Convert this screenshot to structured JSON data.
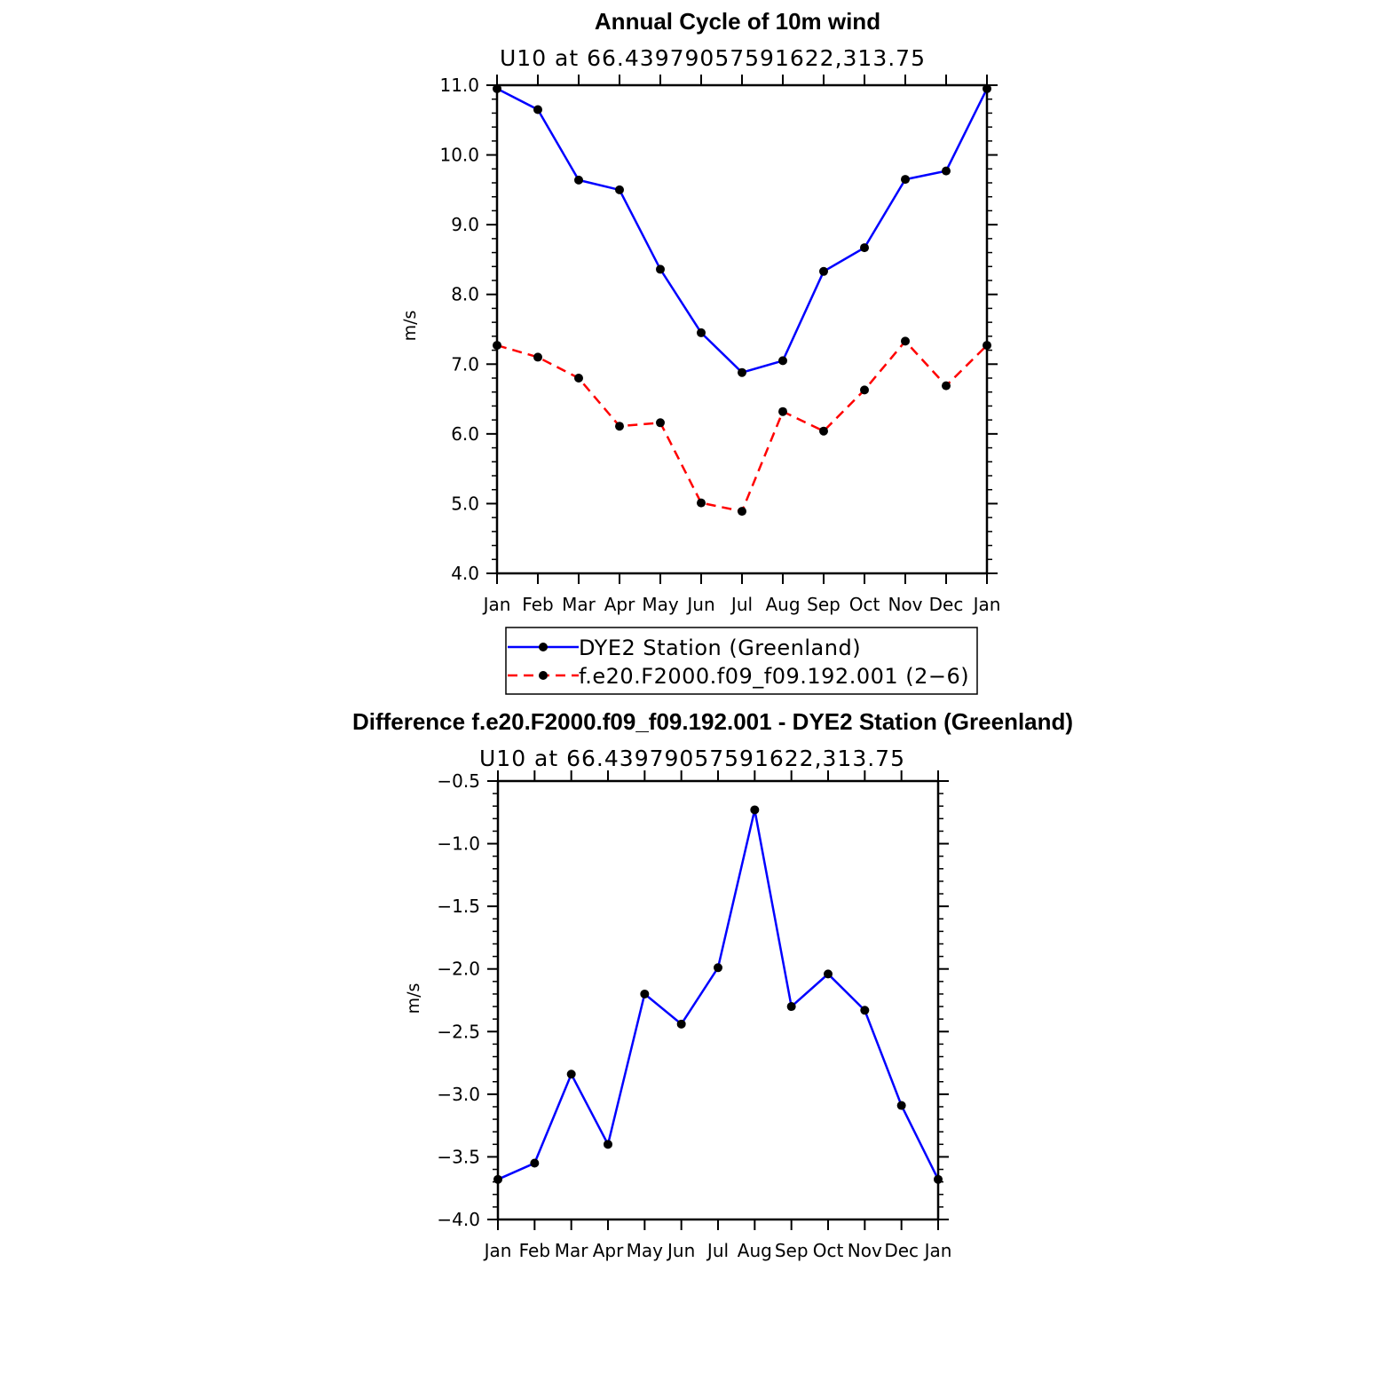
{
  "chart_data": [
    {
      "type": "line",
      "title": "Annual Cycle of 10m wind",
      "subtitle": "U10  at  66.43979057591622,313.75",
      "xlabel": "",
      "ylabel": "m/s",
      "categories": [
        "Jan",
        "Feb",
        "Mar",
        "Apr",
        "May",
        "Jun",
        "Jul",
        "Aug",
        "Sep",
        "Oct",
        "Nov",
        "Dec",
        "Jan"
      ],
      "ylim": [
        4.0,
        11.0
      ],
      "yticks": [
        "4.0",
        "5.0",
        "6.0",
        "7.0",
        "8.0",
        "9.0",
        "10.0",
        "11.0"
      ],
      "series": [
        {
          "name": "DYE2 Station (Greenland)",
          "color": "#0000ff",
          "dash": "solid",
          "values": [
            10.95,
            10.65,
            9.64,
            9.5,
            8.36,
            7.45,
            6.88,
            7.05,
            8.33,
            8.67,
            9.65,
            9.77,
            10.95
          ]
        },
        {
          "name": "f.e20.F2000.f09_f09.192.001 (2−6)",
          "color": "#ff0000",
          "dash": "dashed",
          "values": [
            7.27,
            7.1,
            6.8,
            6.11,
            6.16,
            5.01,
            4.89,
            6.32,
            6.04,
            6.63,
            7.33,
            6.69,
            7.27
          ]
        }
      ],
      "legend": "bottom"
    },
    {
      "type": "line",
      "title": "Difference f.e20.F2000.f09_f09.192.001 - DYE2 Station (Greenland)",
      "subtitle": "U10  at  66.43979057591622,313.75",
      "xlabel": "",
      "ylabel": "m/s",
      "categories": [
        "Jan",
        "Feb",
        "Mar",
        "Apr",
        "May",
        "Jun",
        "Jul",
        "Aug",
        "Sep",
        "Oct",
        "Nov",
        "Dec",
        "Jan"
      ],
      "ylim": [
        -4.0,
        -0.5
      ],
      "yticks": [
        "−4.0",
        "−3.5",
        "−3.0",
        "−2.5",
        "−2.0",
        "−1.5",
        "−1.0",
        "−0.5"
      ],
      "series": [
        {
          "name": "Difference",
          "color": "#0000ff",
          "dash": "solid",
          "values": [
            -3.68,
            -3.55,
            -2.84,
            -3.4,
            -2.2,
            -2.44,
            -1.99,
            -0.73,
            -2.3,
            -2.04,
            -2.33,
            -3.09,
            -3.68
          ]
        }
      ]
    }
  ]
}
